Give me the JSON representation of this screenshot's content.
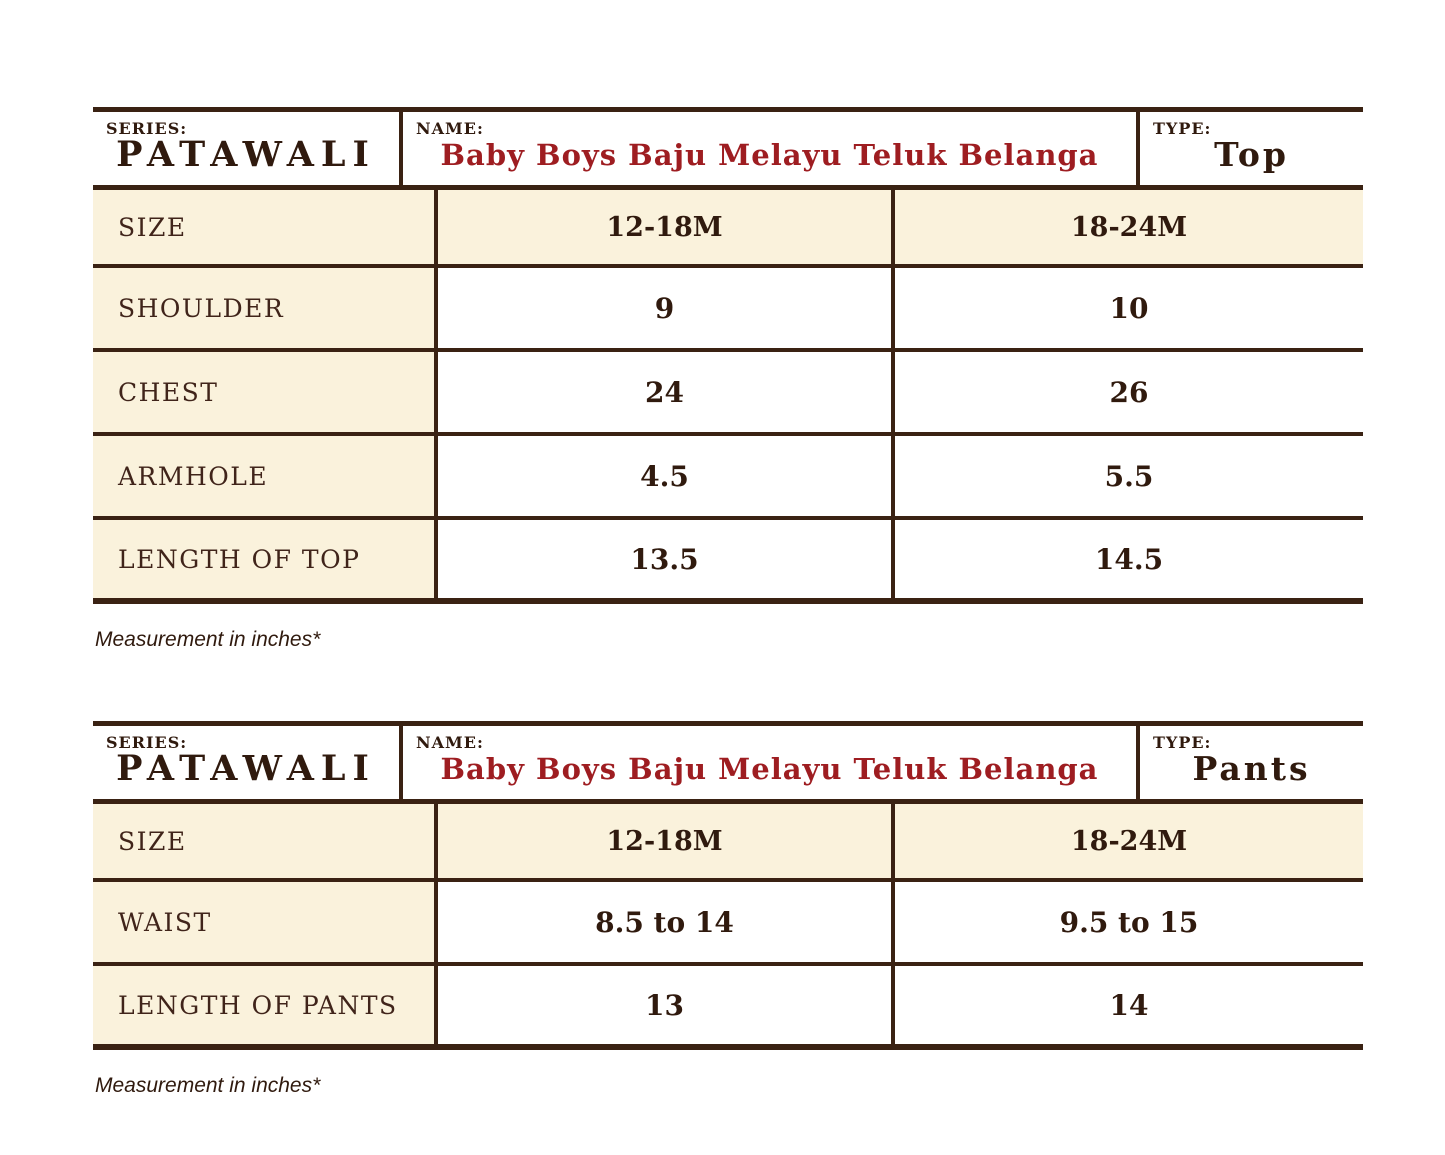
{
  "colors": {
    "border_brown": "#3a2213",
    "cream_fill": "#faf2dc",
    "text_brown": "#40241a",
    "name_red": "#9e1d21",
    "page_background": "#ffffff"
  },
  "tables": [
    {
      "series_label": "SERIES:",
      "series_value": "PATAWALI",
      "name_label": "NAME:",
      "name_value": "Baby Boys Baju Melayu Teluk Belanga",
      "type_label": "TYPE:",
      "type_value": "Top",
      "columns": [
        "SIZE",
        "12-18M",
        "18-24M"
      ],
      "rows": [
        {
          "label": "SHOULDER",
          "values": [
            "9",
            "10"
          ]
        },
        {
          "label": "CHEST",
          "values": [
            "24",
            "26"
          ]
        },
        {
          "label": "ARMHOLE",
          "values": [
            "4.5",
            "5.5"
          ]
        },
        {
          "label": "LENGTH OF TOP",
          "values": [
            "13.5",
            "14.5"
          ]
        }
      ],
      "footnote": "Measurement in inches*"
    },
    {
      "series_label": "SERIES:",
      "series_value": "PATAWALI",
      "name_label": "NAME:",
      "name_value": "Baby Boys Baju Melayu Teluk Belanga",
      "type_label": "TYPE:",
      "type_value": "Pants",
      "columns": [
        "SIZE",
        "12-18M",
        "18-24M"
      ],
      "rows": [
        {
          "label": "WAIST",
          "values": [
            "8.5 to 14",
            "9.5 to 15"
          ]
        },
        {
          "label": "LENGTH OF PANTS",
          "values": [
            "13",
            "14"
          ]
        }
      ],
      "footnote": "Measurement in inches*"
    }
  ]
}
